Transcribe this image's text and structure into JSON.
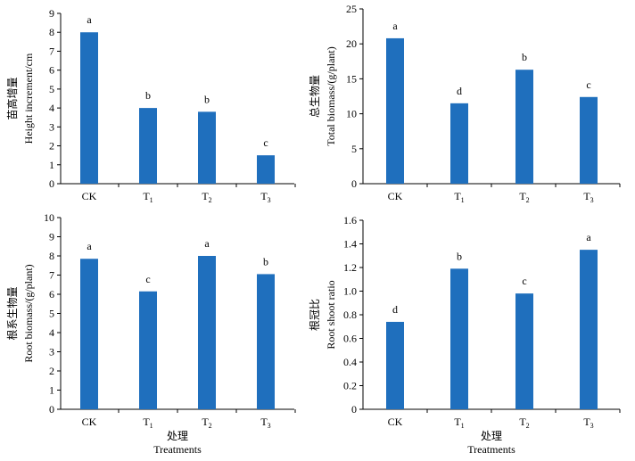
{
  "colors": {
    "bar": "#1f6fbd",
    "axis": "#000000"
  },
  "chart_data": [
    {
      "type": "bar",
      "categories": [
        "CK",
        "T1",
        "T2",
        "T3"
      ],
      "category_labels": [
        {
          "base": "CK",
          "sub": ""
        },
        {
          "base": "T",
          "sub": "1"
        },
        {
          "base": "T",
          "sub": "2"
        },
        {
          "base": "T",
          "sub": "3"
        }
      ],
      "values": [
        8.0,
        4.0,
        3.8,
        1.5
      ],
      "significance": [
        "a",
        "b",
        "b",
        "c"
      ],
      "ylabel_cn": "苗高增量",
      "ylabel": "Height increment/cm",
      "xlabel_cn": "",
      "xlabel": "",
      "ylim": [
        0,
        9
      ],
      "yticks": [
        0,
        1,
        2,
        3,
        4,
        5,
        6,
        7,
        8,
        9
      ],
      "ytick_labels": [
        "0",
        "1",
        "2",
        "3",
        "4",
        "5",
        "6",
        "7",
        "8",
        "9"
      ]
    },
    {
      "type": "bar",
      "categories": [
        "CK",
        "T1",
        "T2",
        "T3"
      ],
      "category_labels": [
        {
          "base": "CK",
          "sub": ""
        },
        {
          "base": "T",
          "sub": "1"
        },
        {
          "base": "T",
          "sub": "2"
        },
        {
          "base": "T",
          "sub": "3"
        }
      ],
      "values": [
        20.8,
        11.5,
        16.3,
        12.4
      ],
      "significance": [
        "a",
        "d",
        "b",
        "c"
      ],
      "ylabel_cn": "总生物量",
      "ylabel": "Total biomass/(g/plant)",
      "xlabel_cn": "",
      "xlabel": "",
      "ylim": [
        0,
        25
      ],
      "yticks": [
        0,
        5,
        10,
        15,
        20,
        25
      ],
      "ytick_labels": [
        "0",
        "5",
        "10",
        "15",
        "20",
        "25"
      ]
    },
    {
      "type": "bar",
      "categories": [
        "CK",
        "T1",
        "T2",
        "T3"
      ],
      "category_labels": [
        {
          "base": "CK",
          "sub": ""
        },
        {
          "base": "T",
          "sub": "1"
        },
        {
          "base": "T",
          "sub": "2"
        },
        {
          "base": "T",
          "sub": "3"
        }
      ],
      "values": [
        7.85,
        6.15,
        8.0,
        7.05
      ],
      "significance": [
        "a",
        "c",
        "a",
        "b"
      ],
      "ylabel_cn": "根系生物量",
      "ylabel": "Root biomass/(g/plant)",
      "xlabel_cn": "处理",
      "xlabel": "Treatments",
      "ylim": [
        0,
        10
      ],
      "yticks": [
        0,
        1,
        2,
        3,
        4,
        5,
        6,
        7,
        8,
        9,
        10
      ],
      "ytick_labels": [
        "0",
        "1",
        "2",
        "3",
        "4",
        "5",
        "6",
        "7",
        "8",
        "9",
        "10"
      ]
    },
    {
      "type": "bar",
      "categories": [
        "CK",
        "T1",
        "T2",
        "T3"
      ],
      "category_labels": [
        {
          "base": "CK",
          "sub": ""
        },
        {
          "base": "T",
          "sub": "1"
        },
        {
          "base": "T",
          "sub": "2"
        },
        {
          "base": "T",
          "sub": "3"
        }
      ],
      "values": [
        0.74,
        1.19,
        0.98,
        1.35
      ],
      "significance": [
        "d",
        "b",
        "c",
        "a"
      ],
      "ylabel_cn": "根冠比",
      "ylabel": "Root shoot ratio",
      "xlabel_cn": "处理",
      "xlabel": "Treatments",
      "ylim": [
        0,
        1.6
      ],
      "yticks": [
        0,
        0.2,
        0.4,
        0.6,
        0.8,
        1.0,
        1.2,
        1.4,
        1.6
      ],
      "ytick_labels": [
        "0",
        "0.2",
        "0.4",
        "0.6",
        "0.8",
        "1.0",
        "1.2",
        "1.4",
        "1.6"
      ]
    }
  ]
}
